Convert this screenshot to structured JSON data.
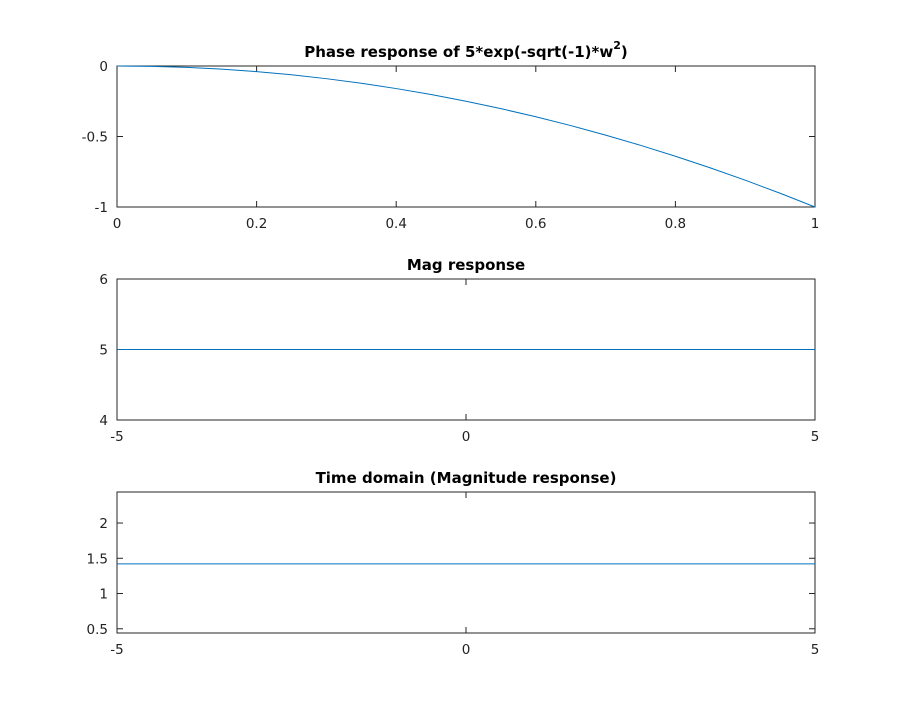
{
  "chart_data": [
    {
      "type": "line",
      "title_parts": [
        "Phase response of 5*exp(-sqrt(-1)*w",
        "2",
        ")"
      ],
      "xlabel": "",
      "ylabel": "",
      "xlim": [
        0,
        1
      ],
      "ylim": [
        -1,
        0
      ],
      "xticks": [
        0,
        0.2,
        0.4,
        0.6,
        0.8,
        1
      ],
      "xtick_labels": [
        "0",
        "0.2",
        "0.4",
        "0.6",
        "0.8",
        "1"
      ],
      "yticks": [
        -1,
        -0.5,
        0
      ],
      "ytick_labels": [
        "-1",
        "-0.5",
        "0"
      ],
      "grid": false,
      "color": "#0072BD",
      "series": [
        {
          "x": [
            0,
            0.05,
            0.1,
            0.15,
            0.2,
            0.25,
            0.3,
            0.35,
            0.4,
            0.45,
            0.5,
            0.55,
            0.6,
            0.65,
            0.7,
            0.75,
            0.8,
            0.85,
            0.9,
            0.95,
            1
          ],
          "y": [
            0,
            -0.0025,
            -0.01,
            -0.0225,
            -0.04,
            -0.0625,
            -0.09,
            -0.1225,
            -0.16,
            -0.2025,
            -0.25,
            -0.3025,
            -0.36,
            -0.4225,
            -0.49,
            -0.5625,
            -0.64,
            -0.7225,
            -0.81,
            -0.9025,
            -1
          ]
        }
      ]
    },
    {
      "type": "line",
      "title": "Mag response",
      "xlabel": "",
      "ylabel": "",
      "xlim": [
        -5,
        5
      ],
      "ylim": [
        4,
        6
      ],
      "xticks": [
        -5,
        0,
        5
      ],
      "xtick_labels": [
        "-5",
        "0",
        "5"
      ],
      "yticks": [
        4,
        5,
        6
      ],
      "ytick_labels": [
        "4",
        "5",
        "6"
      ],
      "grid": false,
      "color": "#0072BD",
      "series": [
        {
          "x": [
            -5,
            5
          ],
          "y": [
            5,
            5
          ]
        }
      ]
    },
    {
      "type": "line",
      "title": "Time domain (Magnitude response)",
      "xlabel": "",
      "ylabel": "",
      "xlim": [
        -5,
        5
      ],
      "ylim": [
        0.44,
        2.44
      ],
      "xticks": [
        -5,
        0,
        5
      ],
      "xtick_labels": [
        "-5",
        "0",
        "5"
      ],
      "yticks": [
        0.5,
        1,
        1.5,
        2
      ],
      "ytick_labels": [
        "0.5",
        "1",
        "1.5",
        "2"
      ],
      "grid": false,
      "color": "#0072BD",
      "series": [
        {
          "x": [
            -5,
            5
          ],
          "y": [
            1.42,
            1.42
          ]
        }
      ]
    }
  ]
}
